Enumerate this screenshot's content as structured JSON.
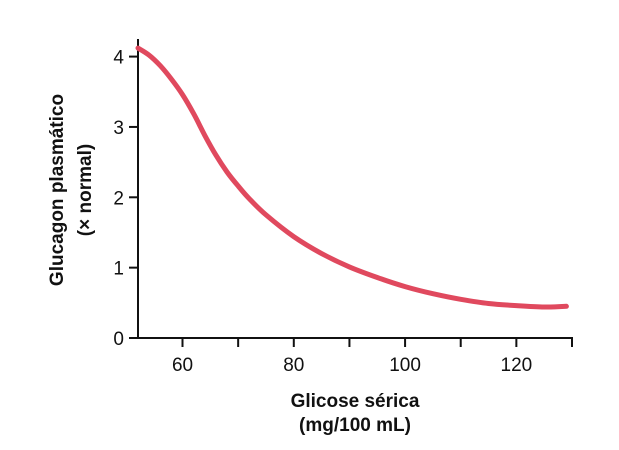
{
  "chart_data": {
    "type": "line",
    "title": "",
    "xlabel": [
      "Glicose sérica",
      "(mg/100 mL)"
    ],
    "ylabel": [
      "Glucagon plasmático",
      "(× normal)"
    ],
    "xlim": [
      52,
      130
    ],
    "ylim": [
      0,
      4.25
    ],
    "xticks": [
      60,
      70,
      80,
      90,
      100,
      110,
      120,
      130
    ],
    "xtick_labels": [
      {
        "value": 60,
        "label": "60"
      },
      {
        "value": 80,
        "label": "80"
      },
      {
        "value": 100,
        "label": "100"
      },
      {
        "value": 120,
        "label": "120"
      }
    ],
    "yticks": [
      0,
      1,
      2,
      3,
      4
    ],
    "ytick_labels": [
      {
        "value": 0,
        "label": "0"
      },
      {
        "value": 1,
        "label": "1"
      },
      {
        "value": 2,
        "label": "2"
      },
      {
        "value": 3,
        "label": "3"
      },
      {
        "value": 4,
        "label": "4"
      }
    ],
    "grid": false,
    "line_color": "#e0495e",
    "series": [
      {
        "x": [
          52,
          54,
          56,
          58,
          60,
          62,
          64,
          66,
          68,
          70,
          72,
          75,
          80,
          85,
          90,
          95,
          100,
          105,
          110,
          115,
          120,
          125,
          129
        ],
        "y": [
          4.12,
          4.02,
          3.87,
          3.68,
          3.46,
          3.19,
          2.88,
          2.6,
          2.36,
          2.16,
          1.98,
          1.75,
          1.44,
          1.2,
          1.01,
          0.86,
          0.73,
          0.63,
          0.55,
          0.49,
          0.46,
          0.44,
          0.45
        ]
      }
    ]
  }
}
